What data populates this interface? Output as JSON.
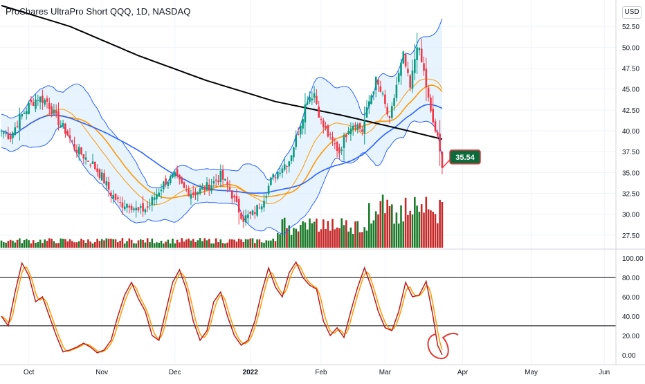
{
  "header": {
    "title": "ProShares UltraPro Short QQQ, 1D, NASDAQ",
    "currency": "USD"
  },
  "chart_data": [
    {
      "type": "candlestick",
      "title": "ProShares UltraPro Short QQQ, 1D, NASDAQ",
      "x_ticks": [
        "Oct",
        "Nov",
        "Dec",
        "2022",
        "Feb",
        "Mar",
        "Apr",
        "May",
        "Jun"
      ],
      "y_ticks": [
        "27.50",
        "30.00",
        "32.50",
        "35.00",
        "37.50",
        "40.00",
        "42.50",
        "45.00",
        "47.50",
        "50.00",
        "52.50"
      ],
      "ylim": [
        26,
        55
      ],
      "last_price": "35.54",
      "last_price_color": "#f23645",
      "up_color": "#089981",
      "down_color": "#f23645",
      "bollinger_fill_color": "#ddeefc",
      "bollinger_line_color": "#2962ff",
      "ma200_color": "#000000",
      "ma_blue_color": "#2962ff",
      "ma_orange_color": "#ff9800",
      "volume_up_color": "#1b7a2a",
      "volume_down_color": "#c62828",
      "price_anchors": [
        [
          0,
          40.0
        ],
        [
          4,
          39.3
        ],
        [
          8,
          41.5
        ],
        [
          12,
          43.0
        ],
        [
          16,
          44.0
        ],
        [
          20,
          43.5
        ],
        [
          24,
          41.5
        ],
        [
          28,
          40.0
        ],
        [
          32,
          38.0
        ],
        [
          36,
          37.0
        ],
        [
          40,
          36.0
        ],
        [
          44,
          34.5
        ],
        [
          48,
          32.5
        ],
        [
          52,
          31.2
        ],
        [
          56,
          31.3
        ],
        [
          60,
          30.3
        ],
        [
          64,
          30.8
        ],
        [
          68,
          32.5
        ],
        [
          72,
          34.0
        ],
        [
          76,
          34.5
        ],
        [
          80,
          33.0
        ],
        [
          84,
          32.5
        ],
        [
          88,
          33.0
        ],
        [
          92,
          33.6
        ],
        [
          96,
          34.6
        ],
        [
          100,
          33.0
        ],
        [
          103,
          31.0
        ],
        [
          106,
          29.5
        ],
        [
          110,
          30.0
        ],
        [
          114,
          31.5
        ],
        [
          118,
          34.0
        ],
        [
          122,
          35.5
        ],
        [
          126,
          36.5
        ],
        [
          130,
          40.0
        ],
        [
          134,
          44.0
        ],
        [
          137,
          44.5
        ],
        [
          140,
          41.0
        ],
        [
          144,
          39.0
        ],
        [
          148,
          37.5
        ],
        [
          152,
          40.5
        ],
        [
          155,
          41.0
        ],
        [
          158,
          40.0
        ],
        [
          161,
          43.5
        ],
        [
          164,
          46.0
        ],
        [
          167,
          44.0
        ],
        [
          170,
          41.0
        ],
        [
          173,
          45.5
        ],
        [
          176,
          49.0
        ],
        [
          179,
          45.0
        ],
        [
          182,
          50.5
        ],
        [
          185,
          47.0
        ],
        [
          188,
          42.0
        ],
        [
          191,
          39.0
        ],
        [
          193,
          35.54
        ]
      ],
      "annotation": "red-circle-near-oversold"
    },
    {
      "type": "line",
      "name_hidden": true,
      "y_ticks": [
        "0.00",
        "20.00",
        "40.00",
        "60.00",
        "80.00",
        "100.00"
      ],
      "ylim": [
        -8,
        108
      ],
      "hlines": [
        80,
        30
      ],
      "k_color": "#b71c1c",
      "d_color": "#ff9800",
      "k_anchors": [
        [
          0,
          40
        ],
        [
          3,
          30
        ],
        [
          6,
          65
        ],
        [
          9,
          95
        ],
        [
          12,
          82
        ],
        [
          15,
          55
        ],
        [
          18,
          60
        ],
        [
          21,
          40
        ],
        [
          24,
          20
        ],
        [
          27,
          3
        ],
        [
          30,
          5
        ],
        [
          33,
          8
        ],
        [
          36,
          12
        ],
        [
          39,
          8
        ],
        [
          42,
          2
        ],
        [
          45,
          5
        ],
        [
          48,
          15
        ],
        [
          51,
          40
        ],
        [
          54,
          62
        ],
        [
          57,
          75
        ],
        [
          60,
          58
        ],
        [
          63,
          45
        ],
        [
          66,
          20
        ],
        [
          69,
          15
        ],
        [
          72,
          45
        ],
        [
          75,
          75
        ],
        [
          78,
          88
        ],
        [
          81,
          68
        ],
        [
          84,
          35
        ],
        [
          87,
          15
        ],
        [
          90,
          25
        ],
        [
          93,
          55
        ],
        [
          96,
          65
        ],
        [
          99,
          40
        ],
        [
          102,
          20
        ],
        [
          105,
          10
        ],
        [
          108,
          15
        ],
        [
          111,
          35
        ],
        [
          114,
          65
        ],
        [
          117,
          90
        ],
        [
          120,
          70
        ],
        [
          123,
          60
        ],
        [
          126,
          85
        ],
        [
          129,
          96
        ],
        [
          132,
          80
        ],
        [
          135,
          72
        ],
        [
          138,
          68
        ],
        [
          141,
          35
        ],
        [
          144,
          20
        ],
        [
          147,
          28
        ],
        [
          150,
          18
        ],
        [
          153,
          45
        ],
        [
          156,
          70
        ],
        [
          159,
          90
        ],
        [
          162,
          70
        ],
        [
          165,
          45
        ],
        [
          168,
          28
        ],
        [
          171,
          25
        ],
        [
          174,
          45
        ],
        [
          177,
          75
        ],
        [
          180,
          60
        ],
        [
          183,
          62
        ],
        [
          186,
          76
        ],
        [
          189,
          40
        ],
        [
          191,
          10
        ],
        [
          193,
          0
        ]
      ]
    }
  ]
}
